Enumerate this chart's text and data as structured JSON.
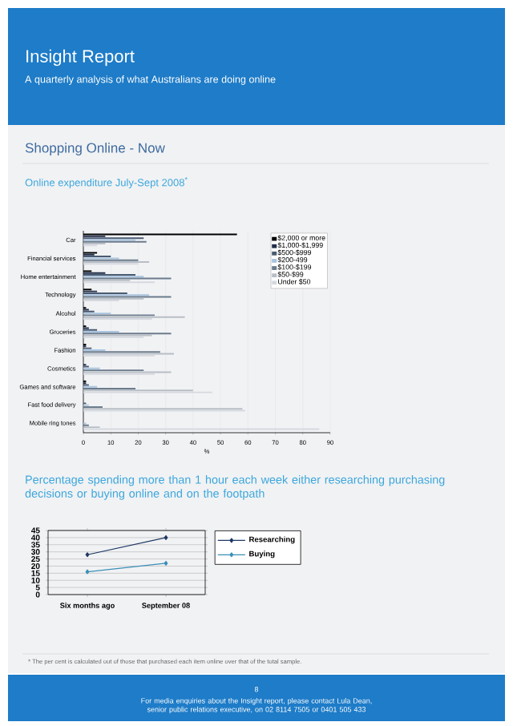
{
  "chart_data": [
    {
      "type": "other",
      "title": "Insight Report",
      "subtitle": "A quarterly analysis of what Australians are doing online",
      "annotations": [
        "Shopping Online - Now",
        "8",
        "For media enquiries about the Insight report, please contact Lula Dean, senior public relations executive, on 02 8114 7505 or 0401 505 433"
      ]
    },
    {
      "type": "bar",
      "orientation": "horizontal",
      "title": "Online expenditure July-Sept 2008$^{*}$",
      "xlabel": "%",
      "categories": [
        "Car",
        "Financial services",
        "Home entertainment",
        "Technology",
        "Alcohol",
        "Groceries",
        "Fashion",
        "Cosmetics",
        "Games and software",
        "Fast food delivery",
        "Mobile ring tones"
      ],
      "series": [
        {
          "name": "$2,000 or more",
          "color": "#000000",
          "values": [
            56,
            5,
            3,
            3,
            1,
            1,
            1,
            0,
            1,
            0,
            0
          ]
        },
        {
          "name": "$1,000-$1,999",
          "color": "#1f2d4a",
          "values": [
            8,
            4,
            8,
            5,
            2,
            2,
            1,
            1,
            1,
            0,
            0
          ]
        },
        {
          "name": "$500-$999",
          "color": "#4a5a70",
          "values": [
            22,
            10,
            19,
            16,
            4,
            5,
            3,
            2,
            2,
            1,
            0
          ]
        },
        {
          "name": "$200-499",
          "color": "#a9c4e0",
          "values": [
            19,
            13,
            22,
            24,
            10,
            13,
            8,
            6,
            5,
            2,
            1
          ]
        },
        {
          "name": "$100-$199",
          "color": "#6b7b8c",
          "values": [
            23,
            20,
            32,
            32,
            26,
            32,
            28,
            22,
            19,
            7,
            2
          ]
        },
        {
          "name": "$50-$99",
          "color": "#b8bec6",
          "values": [
            8,
            24,
            17,
            22,
            37,
            25,
            33,
            32,
            40,
            58,
            6
          ]
        },
        {
          "name": "Under $50",
          "color": "#d5d9df",
          "values": [
            5,
            20,
            26,
            13,
            25,
            22,
            26,
            26,
            47,
            59,
            86
          ]
        }
      ],
      "xlim": [
        0,
        90
      ],
      "xticks": [
        0,
        10,
        20,
        30,
        40,
        50,
        60,
        70,
        80,
        90
      ],
      "grid": "x",
      "legend": "top right",
      "annotations": [
        "* The per cent is calculated out of those that purchased each item online over that of the total sample."
      ]
    },
    {
      "type": "line",
      "title": "Percentage spending more than 1 hour each week either researching purchasing decisions or buying online and on the footpath",
      "categories": [
        "Six months ago",
        "September 08"
      ],
      "series": [
        {
          "name": "Researching",
          "color": "#1f3864",
          "values": [
            28,
            40
          ]
        },
        {
          "name": "Buying",
          "color": "#3a8fb7",
          "values": [
            16,
            22
          ]
        }
      ],
      "ylim": [
        0,
        45
      ],
      "yticks": [
        0,
        5,
        10,
        15,
        20,
        25,
        30,
        35,
        40,
        45
      ],
      "grid": "y",
      "legend": "right",
      "marker": "diamond",
      "line_style": "solid"
    }
  ]
}
